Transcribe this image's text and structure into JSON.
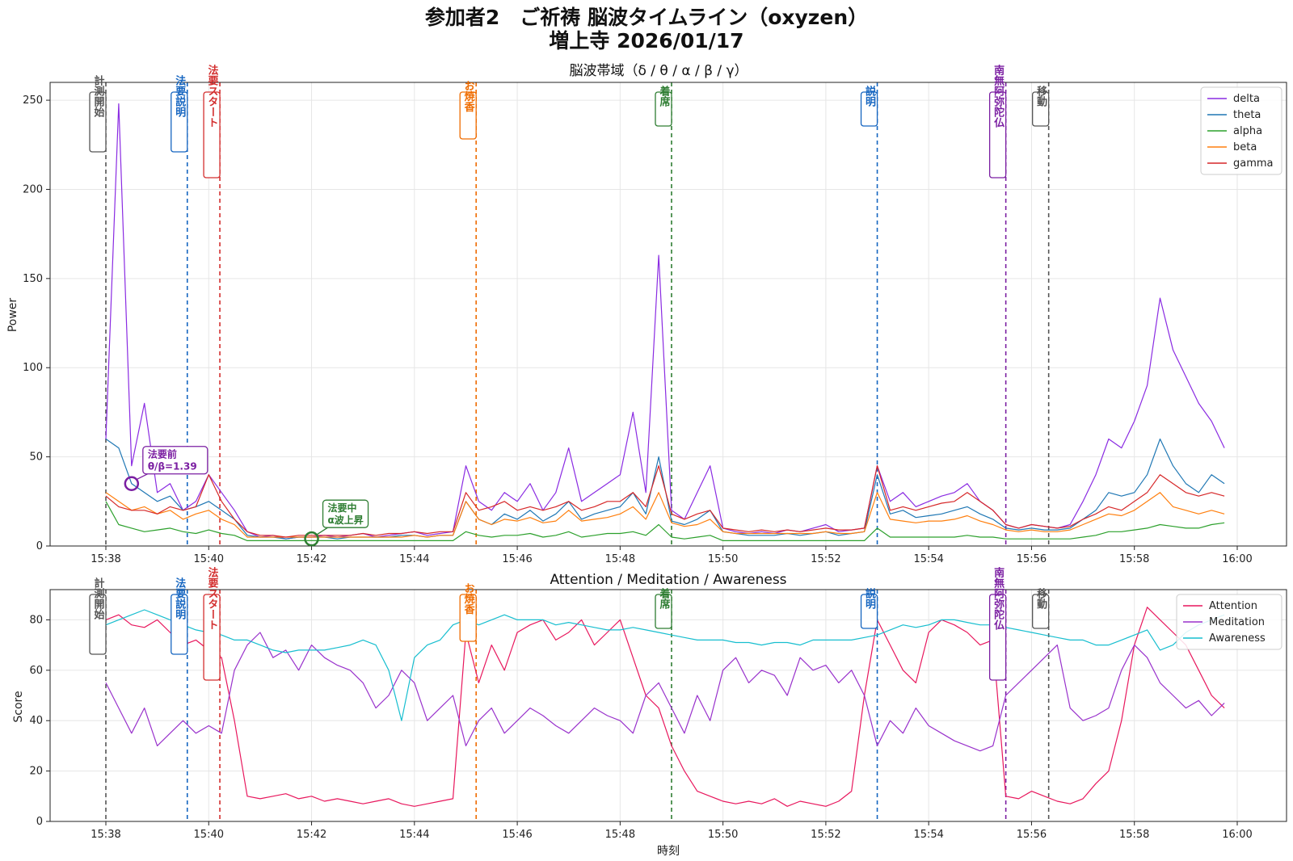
{
  "figure": {
    "title_line1": "参加者2　ご祈祷 脳波タイムライン（oxyzen）",
    "title_line2": "増上寺 2026/01/17"
  },
  "colors": {
    "delta": "#8a2be2",
    "theta": "#1f77b4",
    "alpha": "#2ca02c",
    "beta": "#ff7f0e",
    "gamma": "#d62728",
    "attention": "#e8175d",
    "meditation": "#9932cc",
    "awareness": "#17becf"
  },
  "events": [
    {
      "label": "計測開始",
      "time": "15:38:00",
      "color": "#555555"
    },
    {
      "label": "法要説明",
      "time": "15:39:35",
      "color": "#1565c0"
    },
    {
      "label": "法要スタート",
      "time": "15:40:13",
      "color": "#d32f2f"
    },
    {
      "label": "お焼香",
      "time": "15:45:12",
      "color": "#ef6c00"
    },
    {
      "label": "着席",
      "time": "15:49:00",
      "color": "#2e7d32"
    },
    {
      "label": "説明",
      "time": "15:53:00",
      "color": "#1565c0"
    },
    {
      "label": "南無阿弥陀仏",
      "time": "15:55:30",
      "color": "#7b1fa2"
    },
    {
      "label": "移動",
      "time": "15:56:20",
      "color": "#555555"
    }
  ],
  "annotations": [
    {
      "line1": "法要前",
      "line2": "θ/β=1.39",
      "time": "15:38:30",
      "value": 35,
      "color": "#7b1fa2"
    },
    {
      "line1": "法要中",
      "line2": "α波上昇",
      "time": "15:42:00",
      "value": 4,
      "color": "#2e7d32"
    }
  ],
  "chart_data": [
    {
      "type": "line",
      "title": "脳波帯域（δ / θ / α / β / γ）",
      "xlabel": "",
      "ylabel": "Power",
      "xlim": [
        "15:38:00",
        "16:00:00"
      ],
      "ylim": [
        0,
        260
      ],
      "xticks": [
        "15:38",
        "15:40",
        "15:42",
        "15:44",
        "15:46",
        "15:48",
        "15:50",
        "15:52",
        "15:54",
        "15:56",
        "15:58",
        "16:00"
      ],
      "yticks": [
        "0",
        "50",
        "100",
        "150",
        "200",
        "250"
      ],
      "grid": true,
      "legend": "top-right",
      "x": [
        "15:38:00",
        "15:38:15",
        "15:38:30",
        "15:38:45",
        "15:39:00",
        "15:39:15",
        "15:39:30",
        "15:39:45",
        "15:40:00",
        "15:40:15",
        "15:40:30",
        "15:40:45",
        "15:41:00",
        "15:41:15",
        "15:41:30",
        "15:41:45",
        "15:42:00",
        "15:42:15",
        "15:42:30",
        "15:42:45",
        "15:43:00",
        "15:43:15",
        "15:43:30",
        "15:43:45",
        "15:44:00",
        "15:44:15",
        "15:44:30",
        "15:44:45",
        "15:45:00",
        "15:45:15",
        "15:45:30",
        "15:45:45",
        "15:46:00",
        "15:46:15",
        "15:46:30",
        "15:46:45",
        "15:47:00",
        "15:47:15",
        "15:47:30",
        "15:47:45",
        "15:48:00",
        "15:48:15",
        "15:48:30",
        "15:48:45",
        "15:49:00",
        "15:49:15",
        "15:49:30",
        "15:49:45",
        "15:50:00",
        "15:50:15",
        "15:50:30",
        "15:50:45",
        "15:51:00",
        "15:51:15",
        "15:51:30",
        "15:51:45",
        "15:52:00",
        "15:52:15",
        "15:52:30",
        "15:52:45",
        "15:53:00",
        "15:53:15",
        "15:53:30",
        "15:53:45",
        "15:54:00",
        "15:54:15",
        "15:54:30",
        "15:54:45",
        "15:55:00",
        "15:55:15",
        "15:55:30",
        "15:55:45",
        "15:56:00",
        "15:56:15",
        "15:56:30",
        "15:56:45",
        "15:57:00",
        "15:57:15",
        "15:57:30",
        "15:57:45",
        "15:58:00",
        "15:58:15",
        "15:58:30",
        "15:58:45",
        "15:59:00",
        "15:59:15",
        "15:59:30",
        "15:59:45"
      ],
      "series": [
        {
          "name": "delta",
          "values": [
            60,
            248,
            45,
            80,
            30,
            35,
            20,
            25,
            40,
            30,
            20,
            8,
            5,
            6,
            4,
            5,
            5,
            6,
            5,
            6,
            7,
            5,
            6,
            7,
            8,
            6,
            7,
            8,
            45,
            25,
            20,
            30,
            25,
            35,
            20,
            30,
            55,
            25,
            30,
            35,
            40,
            75,
            30,
            163,
            20,
            15,
            30,
            45,
            10,
            8,
            7,
            8,
            7,
            9,
            8,
            10,
            12,
            8,
            9,
            10,
            45,
            25,
            30,
            22,
            25,
            28,
            30,
            35,
            25,
            20,
            12,
            10,
            12,
            11,
            10,
            12,
            25,
            40,
            60,
            55,
            70,
            90,
            139,
            110,
            95,
            80,
            70,
            55
          ]
        },
        {
          "name": "theta",
          "values": [
            60,
            55,
            35,
            30,
            25,
            28,
            20,
            22,
            25,
            20,
            15,
            6,
            5,
            5,
            4,
            5,
            5,
            5,
            4,
            5,
            5,
            5,
            5,
            6,
            6,
            5,
            6,
            6,
            25,
            15,
            12,
            18,
            15,
            20,
            14,
            18,
            25,
            15,
            18,
            20,
            22,
            30,
            18,
            50,
            14,
            12,
            15,
            20,
            8,
            7,
            6,
            6,
            6,
            7,
            6,
            7,
            8,
            6,
            7,
            8,
            40,
            18,
            20,
            16,
            17,
            18,
            20,
            22,
            18,
            15,
            10,
            9,
            10,
            9,
            9,
            10,
            15,
            20,
            30,
            28,
            30,
            40,
            60,
            45,
            35,
            30,
            40,
            35
          ]
        },
        {
          "name": "alpha",
          "values": [
            25,
            12,
            10,
            8,
            9,
            10,
            8,
            7,
            9,
            7,
            6,
            3,
            3,
            3,
            3,
            3,
            3,
            3,
            3,
            3,
            3,
            3,
            3,
            3,
            3,
            3,
            3,
            3,
            8,
            6,
            5,
            6,
            6,
            7,
            5,
            6,
            8,
            5,
            6,
            7,
            7,
            8,
            6,
            12,
            5,
            4,
            5,
            6,
            3,
            3,
            3,
            3,
            3,
            3,
            3,
            3,
            3,
            3,
            3,
            3,
            10,
            5,
            5,
            5,
            5,
            5,
            5,
            6,
            5,
            5,
            4,
            4,
            4,
            4,
            4,
            4,
            5,
            6,
            8,
            8,
            9,
            10,
            12,
            11,
            10,
            10,
            12,
            13
          ]
        },
        {
          "name": "beta",
          "values": [
            30,
            25,
            20,
            22,
            18,
            20,
            15,
            18,
            20,
            15,
            12,
            5,
            5,
            5,
            5,
            5,
            5,
            5,
            5,
            5,
            5,
            5,
            5,
            5,
            6,
            5,
            6,
            6,
            25,
            15,
            12,
            15,
            14,
            16,
            13,
            14,
            20,
            14,
            15,
            16,
            18,
            22,
            15,
            30,
            13,
            11,
            12,
            15,
            8,
            7,
            7,
            7,
            7,
            7,
            7,
            7,
            8,
            7,
            7,
            8,
            30,
            15,
            14,
            13,
            14,
            14,
            15,
            17,
            14,
            12,
            9,
            8,
            9,
            8,
            8,
            9,
            12,
            15,
            18,
            17,
            20,
            25,
            30,
            22,
            20,
            18,
            20,
            18
          ]
        },
        {
          "name": "gamma",
          "values": [
            28,
            22,
            20,
            20,
            18,
            22,
            20,
            22,
            40,
            25,
            15,
            8,
            6,
            6,
            5,
            6,
            6,
            6,
            6,
            6,
            7,
            6,
            7,
            7,
            8,
            7,
            8,
            8,
            30,
            20,
            22,
            25,
            20,
            22,
            20,
            22,
            25,
            20,
            22,
            25,
            25,
            30,
            22,
            45,
            18,
            15,
            18,
            20,
            10,
            9,
            8,
            9,
            8,
            9,
            8,
            9,
            10,
            9,
            9,
            10,
            45,
            20,
            22,
            20,
            22,
            24,
            25,
            30,
            25,
            20,
            12,
            10,
            12,
            11,
            10,
            11,
            15,
            18,
            22,
            20,
            25,
            30,
            40,
            35,
            30,
            28,
            30,
            28
          ]
        }
      ]
    },
    {
      "type": "line",
      "title": "Attention / Meditation / Awareness",
      "xlabel": "時刻",
      "ylabel": "Score",
      "xlim": [
        "15:38:00",
        "16:00:00"
      ],
      "ylim": [
        0,
        92
      ],
      "xticks": [
        "15:38",
        "15:40",
        "15:42",
        "15:44",
        "15:46",
        "15:48",
        "15:50",
        "15:52",
        "15:54",
        "15:56",
        "15:58",
        "16:00"
      ],
      "yticks": [
        "0",
        "20",
        "40",
        "60",
        "80"
      ],
      "grid": true,
      "legend": "top-right",
      "x": [
        "15:38:00",
        "15:38:15",
        "15:38:30",
        "15:38:45",
        "15:39:00",
        "15:39:15",
        "15:39:30",
        "15:39:45",
        "15:40:00",
        "15:40:15",
        "15:40:30",
        "15:40:45",
        "15:41:00",
        "15:41:15",
        "15:41:30",
        "15:41:45",
        "15:42:00",
        "15:42:15",
        "15:42:30",
        "15:42:45",
        "15:43:00",
        "15:43:15",
        "15:43:30",
        "15:43:45",
        "15:44:00",
        "15:44:15",
        "15:44:30",
        "15:44:45",
        "15:45:00",
        "15:45:15",
        "15:45:30",
        "15:45:45",
        "15:46:00",
        "15:46:15",
        "15:46:30",
        "15:46:45",
        "15:47:00",
        "15:47:15",
        "15:47:30",
        "15:47:45",
        "15:48:00",
        "15:48:15",
        "15:48:30",
        "15:48:45",
        "15:49:00",
        "15:49:15",
        "15:49:30",
        "15:49:45",
        "15:50:00",
        "15:50:15",
        "15:50:30",
        "15:50:45",
        "15:51:00",
        "15:51:15",
        "15:51:30",
        "15:51:45",
        "15:52:00",
        "15:52:15",
        "15:52:30",
        "15:52:45",
        "15:53:00",
        "15:53:15",
        "15:53:30",
        "15:53:45",
        "15:54:00",
        "15:54:15",
        "15:54:30",
        "15:54:45",
        "15:55:00",
        "15:55:15",
        "15:55:30",
        "15:55:45",
        "15:56:00",
        "15:56:15",
        "15:56:30",
        "15:56:45",
        "15:57:00",
        "15:57:15",
        "15:57:30",
        "15:57:45",
        "15:58:00",
        "15:58:15",
        "15:58:30",
        "15:58:45",
        "15:59:00",
        "15:59:15",
        "15:59:30",
        "15:59:45"
      ],
      "series": [
        {
          "name": "Attention",
          "values": [
            80,
            82,
            78,
            77,
            80,
            75,
            70,
            72,
            68,
            65,
            40,
            10,
            9,
            10,
            11,
            9,
            10,
            8,
            9,
            8,
            7,
            8,
            9,
            7,
            6,
            7,
            8,
            9,
            75,
            55,
            70,
            60,
            75,
            78,
            80,
            72,
            75,
            80,
            70,
            75,
            80,
            65,
            50,
            45,
            30,
            20,
            12,
            10,
            8,
            7,
            8,
            7,
            9,
            6,
            8,
            7,
            6,
            8,
            12,
            50,
            80,
            70,
            60,
            55,
            75,
            80,
            78,
            75,
            70,
            72,
            10,
            9,
            12,
            10,
            8,
            7,
            9,
            15,
            20,
            40,
            70,
            85,
            80,
            75,
            70,
            60,
            50,
            45
          ]
        },
        {
          "name": "Meditation",
          "values": [
            55,
            45,
            35,
            45,
            30,
            35,
            40,
            35,
            38,
            35,
            60,
            70,
            75,
            65,
            68,
            60,
            70,
            65,
            62,
            60,
            55,
            45,
            50,
            60,
            55,
            40,
            45,
            50,
            30,
            40,
            45,
            35,
            40,
            45,
            42,
            38,
            35,
            40,
            45,
            42,
            40,
            35,
            50,
            55,
            45,
            35,
            50,
            40,
            60,
            65,
            55,
            60,
            58,
            50,
            65,
            60,
            62,
            55,
            60,
            50,
            30,
            40,
            35,
            45,
            38,
            35,
            32,
            30,
            28,
            30,
            50,
            55,
            60,
            65,
            70,
            45,
            40,
            42,
            45,
            60,
            70,
            65,
            55,
            50,
            45,
            48,
            42,
            47
          ]
        },
        {
          "name": "Awareness",
          "values": [
            78,
            80,
            82,
            84,
            82,
            80,
            78,
            76,
            75,
            74,
            72,
            72,
            70,
            68,
            67,
            68,
            68,
            68,
            69,
            70,
            72,
            70,
            60,
            40,
            65,
            70,
            72,
            78,
            80,
            78,
            80,
            82,
            80,
            80,
            80,
            78,
            79,
            78,
            77,
            76,
            76,
            77,
            76,
            75,
            74,
            73,
            72,
            72,
            72,
            71,
            71,
            70,
            71,
            71,
            70,
            72,
            72,
            72,
            72,
            73,
            74,
            76,
            78,
            77,
            78,
            80,
            80,
            79,
            78,
            78,
            77,
            76,
            75,
            74,
            73,
            72,
            72,
            70,
            70,
            72,
            74,
            76,
            68,
            70,
            75,
            78,
            80,
            82
          ]
        }
      ]
    }
  ]
}
